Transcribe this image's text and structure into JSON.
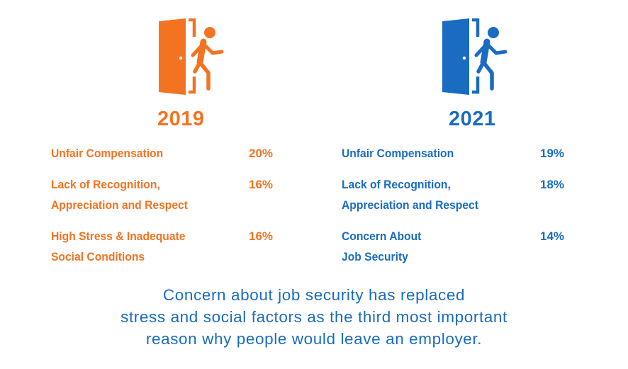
{
  "colors": {
    "col_2019": "#f47321",
    "col_2021": "#1a6cc2"
  },
  "col_2019": {
    "icon": "exit-door-person-icon",
    "year": "2019",
    "items": [
      {
        "reason_line1": "Unfair Compensation",
        "reason_line2": "",
        "percent": "20%"
      },
      {
        "reason_line1": "Lack of Recognition,",
        "reason_line2": "Appreciation and Respect",
        "percent": "16%"
      },
      {
        "reason_line1": "High Stress & Inadequate",
        "reason_line2": "Social Conditions",
        "percent": "16%"
      }
    ]
  },
  "col_2021": {
    "icon": "exit-door-person-icon",
    "year": "2021",
    "items": [
      {
        "reason_line1": "Unfair Compensation",
        "reason_line2": "",
        "percent": "19%"
      },
      {
        "reason_line1": "Lack of Recognition,",
        "reason_line2": "Appreciation and Respect",
        "percent": "18%"
      },
      {
        "reason_line1": "Concern About",
        "reason_line2": "Job Security",
        "percent": "14%"
      }
    ]
  },
  "footnote": {
    "line1": "Concern about job security has replaced",
    "line2": "stress and social factors as the third most important",
    "line3": "reason why people would leave an employer."
  }
}
